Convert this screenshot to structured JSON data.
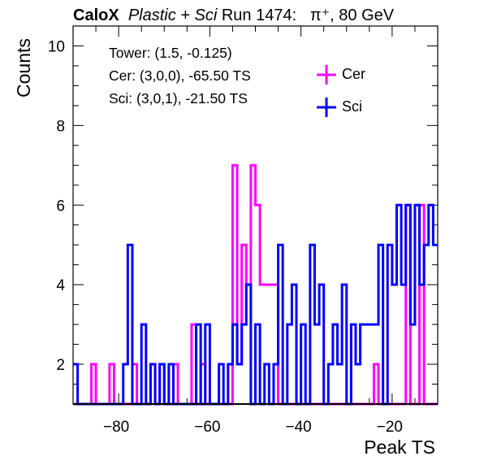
{
  "title": {
    "experiment": "CaloX",
    "detector": "Plastic + Sci",
    "run": "Run 1474:",
    "beam": "π⁺, 80 GeV"
  },
  "info": {
    "tower": "Tower: (1.5, -0.125)",
    "cer": "Cer: (3,0,0), -65.50 TS",
    "sci": "Sci: (3,0,1), -21.50 TS"
  },
  "chart_data": {
    "type": "step-histogram",
    "xlabel": "Peak TS",
    "ylabel": "Counts",
    "xlim": [
      -90,
      -10
    ],
    "ylim": [
      1,
      10.5
    ],
    "x_ticks": [
      -80,
      -60,
      -40,
      -20
    ],
    "y_ticks": [
      2,
      4,
      6,
      8,
      10
    ],
    "bin_width": 1,
    "grid": false,
    "legend_position": "top-right",
    "colors": {
      "Cer": "#ff00ff",
      "Sci": "#0000ff"
    },
    "series": [
      {
        "name": "Cer",
        "color": "#ff00ff",
        "x_start": -90,
        "values": [
          1,
          1,
          1,
          1,
          2,
          1,
          1,
          1,
          2,
          1,
          1,
          1,
          1,
          2,
          1,
          1,
          1,
          2,
          1,
          2,
          1,
          1,
          2,
          1,
          1,
          1,
          3,
          1,
          2,
          1,
          1,
          1,
          1,
          1,
          1,
          7,
          2,
          5,
          4,
          7,
          6,
          4,
          4,
          4,
          4,
          1,
          1,
          1,
          1,
          1,
          1,
          1,
          1,
          1,
          1,
          1,
          1,
          1,
          1,
          1,
          1,
          1,
          1,
          1,
          1,
          1,
          2,
          1,
          1,
          1,
          1,
          1,
          1,
          6,
          1,
          1,
          6,
          1,
          1,
          1
        ]
      },
      {
        "name": "Sci",
        "color": "#0000ff",
        "x_start": -90,
        "values": [
          2,
          1,
          1,
          1,
          1,
          1,
          1,
          1,
          1,
          1,
          1,
          2,
          5,
          1,
          1,
          3,
          1,
          2,
          1,
          2,
          1,
          2,
          1,
          1,
          1,
          1,
          1,
          3,
          1,
          3,
          1,
          1,
          2,
          1,
          2,
          3,
          2,
          3,
          4,
          1,
          3,
          1,
          2,
          1,
          2,
          5,
          1,
          3,
          4,
          1,
          3,
          1,
          5,
          3,
          4,
          1,
          2,
          3,
          2,
          4,
          1,
          3,
          2,
          3,
          3,
          3,
          3,
          5,
          1,
          5,
          4,
          6,
          4,
          6,
          3,
          6,
          4,
          5,
          6,
          5
        ]
      }
    ]
  }
}
